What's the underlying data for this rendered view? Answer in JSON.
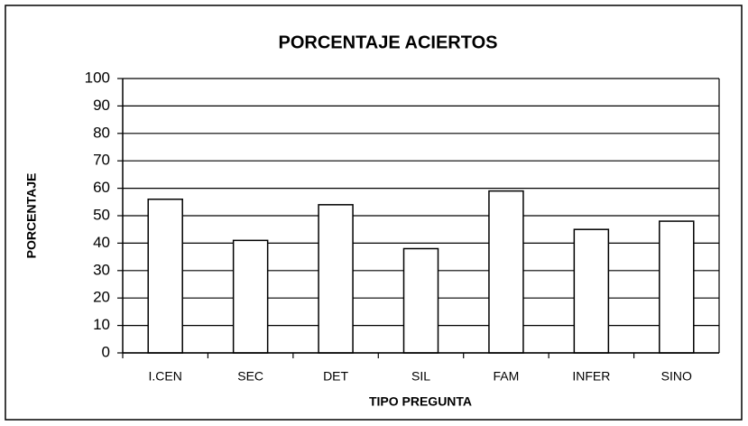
{
  "chart_data": {
    "type": "bar",
    "title": "PORCENTAJE ACIERTOS",
    "x_label": "TIPO PREGUNTA",
    "y_label": "PORCENTAJE",
    "categories": [
      "I.CEN",
      "SEC",
      "DET",
      "SIL",
      "FAM",
      "INFER",
      "SINO"
    ],
    "values": [
      56,
      41,
      54,
      38,
      59,
      45,
      48
    ],
    "color": "#ffffff",
    "ylim": [
      0,
      100
    ],
    "yticks": [
      0,
      10,
      20,
      30,
      40,
      50,
      60,
      70,
      80,
      90,
      100
    ],
    "grid": true
  }
}
